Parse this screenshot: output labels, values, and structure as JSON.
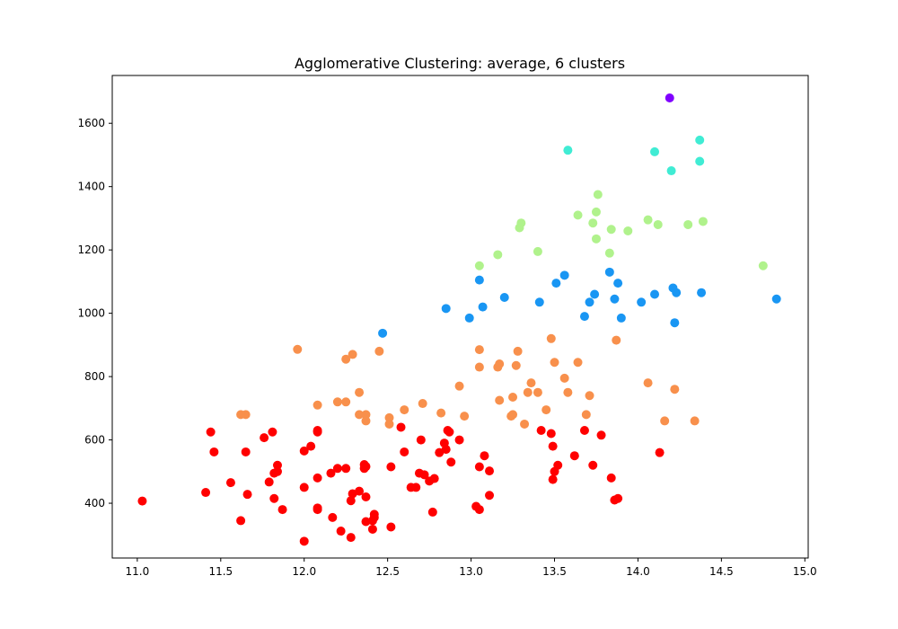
{
  "chart_data": {
    "type": "scatter",
    "title": "Agglomerative Clustering: average, 6 clusters",
    "xlabel": "",
    "ylabel": "",
    "xlim": [
      10.85,
      15.02
    ],
    "ylim": [
      227,
      1751
    ],
    "xticks": [
      11.0,
      11.5,
      12.0,
      12.5,
      13.0,
      13.5,
      14.0,
      14.5,
      15.0
    ],
    "xtick_labels": [
      "11.0",
      "11.5",
      "12.0",
      "12.5",
      "13.0",
      "13.5",
      "14.0",
      "14.5",
      "15.0"
    ],
    "yticks": [
      400,
      600,
      800,
      1000,
      1200,
      1400,
      1600
    ],
    "ytick_labels": [
      "400",
      "600",
      "800",
      "1000",
      "1200",
      "1400",
      "1600"
    ],
    "grid": false,
    "legend": "none",
    "series": [
      {
        "color": "#8000ff",
        "points": [
          [
            14.19,
            1680
          ]
        ]
      },
      {
        "color": "#40ecd4",
        "points": [
          [
            13.58,
            1515
          ],
          [
            14.1,
            1510
          ],
          [
            14.37,
            1547
          ],
          [
            14.2,
            1450
          ],
          [
            14.37,
            1480
          ]
        ]
      },
      {
        "color": "#b0f28c",
        "points": [
          [
            13.05,
            1150
          ],
          [
            13.16,
            1185
          ],
          [
            13.29,
            1270
          ],
          [
            13.3,
            1285
          ],
          [
            13.4,
            1195
          ],
          [
            13.64,
            1310
          ],
          [
            13.73,
            1285
          ],
          [
            13.75,
            1320
          ],
          [
            13.76,
            1375
          ],
          [
            13.75,
            1235
          ],
          [
            13.83,
            1190
          ],
          [
            13.84,
            1265
          ],
          [
            13.94,
            1260
          ],
          [
            14.06,
            1295
          ],
          [
            14.12,
            1280
          ],
          [
            14.3,
            1280
          ],
          [
            14.39,
            1290
          ],
          [
            14.75,
            1150
          ]
        ]
      },
      {
        "color": "#1996f3",
        "points": [
          [
            12.47,
            937
          ],
          [
            12.85,
            1015
          ],
          [
            12.99,
            985
          ],
          [
            13.05,
            1105
          ],
          [
            13.07,
            1020
          ],
          [
            13.2,
            1050
          ],
          [
            13.41,
            1035
          ],
          [
            13.51,
            1095
          ],
          [
            13.56,
            1120
          ],
          [
            13.68,
            990
          ],
          [
            13.71,
            1035
          ],
          [
            13.74,
            1060
          ],
          [
            13.83,
            1130
          ],
          [
            13.86,
            1045
          ],
          [
            13.88,
            1095
          ],
          [
            13.9,
            985
          ],
          [
            14.02,
            1035
          ],
          [
            14.1,
            1060
          ],
          [
            14.21,
            1080
          ],
          [
            14.22,
            970
          ],
          [
            14.23,
            1065
          ],
          [
            14.38,
            1065
          ],
          [
            14.83,
            1045
          ]
        ]
      },
      {
        "color": "#f8904c",
        "points": [
          [
            11.62,
            680
          ],
          [
            11.65,
            680
          ],
          [
            11.96,
            886
          ],
          [
            12.08,
            710
          ],
          [
            12.2,
            720
          ],
          [
            12.25,
            855
          ],
          [
            12.25,
            720
          ],
          [
            12.29,
            870
          ],
          [
            12.33,
            750
          ],
          [
            12.33,
            680
          ],
          [
            12.37,
            680
          ],
          [
            12.37,
            660
          ],
          [
            12.45,
            880
          ],
          [
            12.51,
            670
          ],
          [
            12.51,
            650
          ],
          [
            12.6,
            695
          ],
          [
            12.71,
            715
          ],
          [
            12.82,
            685
          ],
          [
            12.93,
            770
          ],
          [
            12.96,
            675
          ],
          [
            13.05,
            885
          ],
          [
            13.05,
            830
          ],
          [
            13.16,
            830
          ],
          [
            13.17,
            840
          ],
          [
            13.17,
            725
          ],
          [
            13.24,
            675
          ],
          [
            13.25,
            735
          ],
          [
            13.25,
            680
          ],
          [
            13.27,
            835
          ],
          [
            13.28,
            880
          ],
          [
            13.32,
            650
          ],
          [
            13.34,
            750
          ],
          [
            13.36,
            780
          ],
          [
            13.4,
            750
          ],
          [
            13.45,
            695
          ],
          [
            13.48,
            920
          ],
          [
            13.5,
            845
          ],
          [
            13.56,
            795
          ],
          [
            13.58,
            750
          ],
          [
            13.64,
            845
          ],
          [
            13.69,
            680
          ],
          [
            13.71,
            740
          ],
          [
            13.87,
            915
          ],
          [
            14.06,
            780
          ],
          [
            14.16,
            660
          ],
          [
            14.22,
            760
          ],
          [
            14.34,
            660
          ]
        ]
      },
      {
        "color": "#ff0000",
        "points": [
          [
            11.03,
            407
          ],
          [
            11.41,
            434
          ],
          [
            11.44,
            625
          ],
          [
            11.46,
            562
          ],
          [
            11.56,
            465
          ],
          [
            11.62,
            345
          ],
          [
            11.65,
            562
          ],
          [
            11.66,
            428
          ],
          [
            11.76,
            607
          ],
          [
            11.79,
            467
          ],
          [
            11.81,
            625
          ],
          [
            11.82,
            415
          ],
          [
            11.82,
            495
          ],
          [
            11.84,
            520
          ],
          [
            11.84,
            500
          ],
          [
            11.87,
            380
          ],
          [
            12.0,
            565
          ],
          [
            12.0,
            450
          ],
          [
            12.0,
            280
          ],
          [
            12.04,
            580
          ],
          [
            12.08,
            380
          ],
          [
            12.08,
            385
          ],
          [
            12.08,
            480
          ],
          [
            12.08,
            625
          ],
          [
            12.08,
            630
          ],
          [
            12.16,
            495
          ],
          [
            12.17,
            355
          ],
          [
            12.2,
            510
          ],
          [
            12.22,
            312
          ],
          [
            12.25,
            510
          ],
          [
            12.28,
            408
          ],
          [
            12.28,
            292
          ],
          [
            12.29,
            430
          ],
          [
            12.33,
            438
          ],
          [
            12.36,
            510
          ],
          [
            12.36,
            522
          ],
          [
            12.37,
            516
          ],
          [
            12.37,
            420
          ],
          [
            12.37,
            342
          ],
          [
            12.41,
            345
          ],
          [
            12.41,
            318
          ],
          [
            12.42,
            365
          ],
          [
            12.42,
            355
          ],
          [
            12.52,
            515
          ],
          [
            12.52,
            325
          ],
          [
            12.58,
            640
          ],
          [
            12.6,
            562
          ],
          [
            12.64,
            450
          ],
          [
            12.67,
            450
          ],
          [
            12.69,
            495
          ],
          [
            12.7,
            600
          ],
          [
            12.72,
            490
          ],
          [
            12.75,
            470
          ],
          [
            12.77,
            372
          ],
          [
            12.78,
            478
          ],
          [
            12.81,
            560
          ],
          [
            12.84,
            590
          ],
          [
            12.85,
            570
          ],
          [
            12.86,
            630
          ],
          [
            12.87,
            625
          ],
          [
            12.88,
            530
          ],
          [
            12.93,
            600
          ],
          [
            13.03,
            390
          ],
          [
            13.05,
            380
          ],
          [
            13.05,
            515
          ],
          [
            13.08,
            550
          ],
          [
            13.11,
            502
          ],
          [
            13.11,
            425
          ],
          [
            13.42,
            630
          ],
          [
            13.48,
            620
          ],
          [
            13.49,
            580
          ],
          [
            13.49,
            475
          ],
          [
            13.5,
            500
          ],
          [
            13.52,
            520
          ],
          [
            13.62,
            550
          ],
          [
            13.68,
            630
          ],
          [
            13.73,
            520
          ],
          [
            13.78,
            615
          ],
          [
            13.84,
            480
          ],
          [
            13.86,
            410
          ],
          [
            13.88,
            415
          ],
          [
            14.13,
            560
          ]
        ]
      }
    ]
  }
}
